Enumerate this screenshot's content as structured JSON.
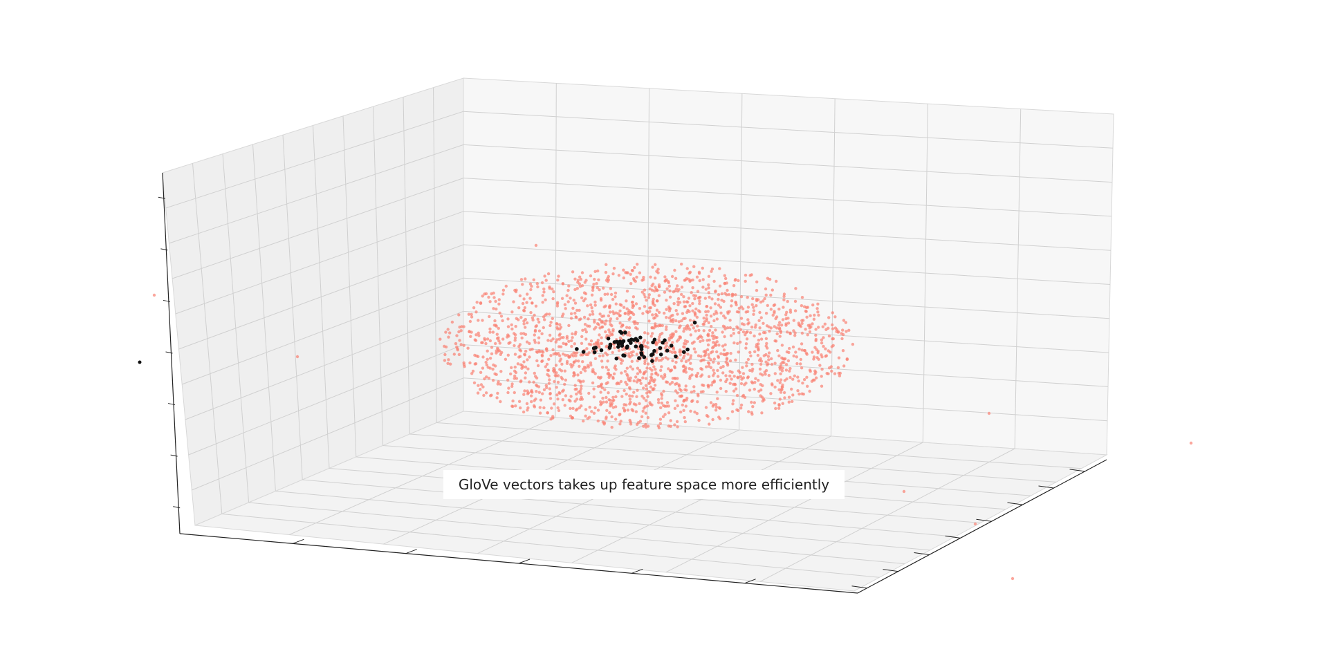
{
  "caption": "GloVe vectors takes up feature space more efficiently",
  "chart_data": {
    "type": "scatter",
    "dimensions": 3,
    "title": "",
    "xlabel": "",
    "ylabel": "",
    "zlabel": "",
    "grid": true,
    "tick_labels_visible": false,
    "series": [
      {
        "color": "#fa8072",
        "spread": "wide",
        "approx_points": 2000
      },
      {
        "color": "#111111",
        "spread": "tight",
        "approx_points": 60
      }
    ]
  },
  "colors": {
    "pane": "#f2f2f2",
    "grid": "#d0d0d0",
    "axis": "#222222",
    "spread_points": "#fa8072",
    "dense_points": "#111111"
  }
}
